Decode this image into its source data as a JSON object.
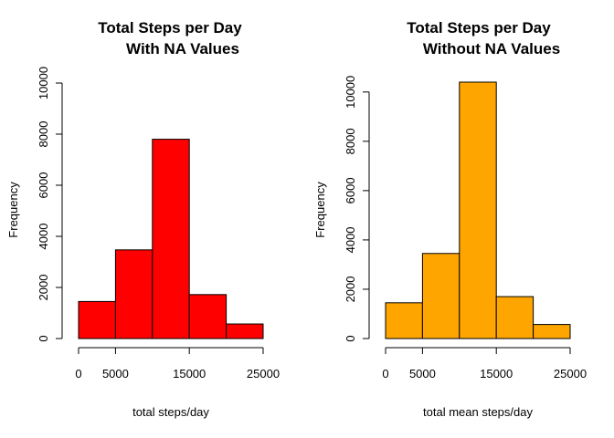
{
  "chart_data": [
    {
      "type": "bar",
      "title_line1": "Total Steps per Day",
      "title_line2": "With NA Values",
      "xlabel": "total steps/day",
      "ylabel": "Frequency",
      "bins": [
        [
          0,
          5000
        ],
        [
          5000,
          10000
        ],
        [
          10000,
          15000
        ],
        [
          15000,
          20000
        ],
        [
          20000,
          25000
        ]
      ],
      "values": [
        1450,
        3470,
        7800,
        1720,
        570
      ],
      "fill": "#ff0000",
      "xlim": [
        0,
        25000
      ],
      "ylim": [
        0,
        10000
      ],
      "xticks": [
        0,
        5000,
        15000,
        25000
      ],
      "xtick_labels": [
        "0",
        "5000",
        "15000",
        "25000"
      ],
      "yticks": [
        0,
        2000,
        4000,
        6000,
        8000,
        10000
      ],
      "ytick_labels": [
        "0",
        "2000",
        "4000",
        "6000",
        "8000",
        "10000"
      ]
    },
    {
      "type": "bar",
      "title_line1": "Total Steps per Day",
      "title_line2": "Without NA Values",
      "xlabel": "total mean steps/day",
      "ylabel": "Frequency",
      "bins": [
        [
          0,
          5000
        ],
        [
          5000,
          10000
        ],
        [
          10000,
          15000
        ],
        [
          15000,
          20000
        ],
        [
          20000,
          25000
        ]
      ],
      "values": [
        1450,
        3450,
        10400,
        1700,
        570
      ],
      "fill": "#ffa500",
      "xlim": [
        0,
        25000
      ],
      "ylim": [
        0,
        10400
      ],
      "xticks": [
        0,
        5000,
        15000,
        25000
      ],
      "xtick_labels": [
        "0",
        "5000",
        "15000",
        "25000"
      ],
      "yticks": [
        0,
        2000,
        4000,
        6000,
        8000,
        10000
      ],
      "ytick_labels": [
        "0",
        "2000",
        "4000",
        "6000",
        "8000",
        "10000"
      ]
    }
  ]
}
